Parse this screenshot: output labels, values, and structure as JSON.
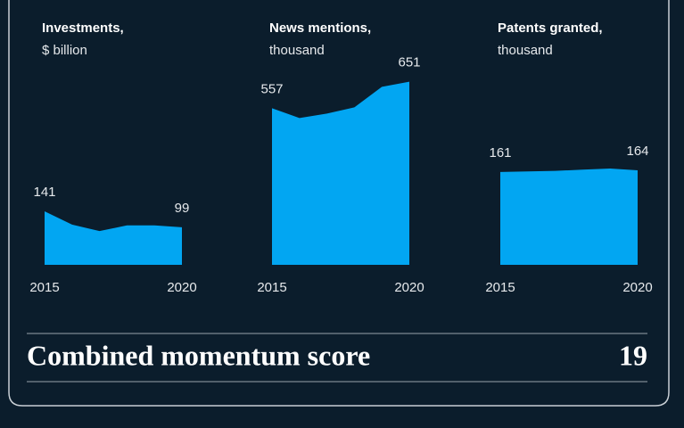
{
  "chart_data": [
    {
      "type": "area",
      "title": "Investments,",
      "subtitle": "$ billion",
      "color": "#02a6f2",
      "x": [
        2015,
        2016,
        2017,
        2018,
        2019,
        2020
      ],
      "values": [
        141,
        106,
        89,
        104,
        104,
        99
      ],
      "value_labels": [
        "141",
        null,
        null,
        null,
        null,
        "99"
      ],
      "xlim": [
        2015,
        2020
      ],
      "xticks": [
        2015,
        2020
      ],
      "ylim": [
        0,
        482
      ]
    },
    {
      "type": "area",
      "title": "News mentions,",
      "subtitle": "thousand",
      "color": "#02a6f2",
      "x": [
        2015,
        2016,
        2017,
        2018,
        2019,
        2020
      ],
      "values": [
        557,
        522,
        538,
        560,
        633,
        651
      ],
      "value_labels": [
        "557",
        null,
        null,
        null,
        null,
        "651"
      ],
      "xlim": [
        2015,
        2020
      ],
      "xticks": [
        2015,
        2020
      ],
      "ylim": [
        0,
        650
      ]
    },
    {
      "type": "area",
      "title": "Patents granted,",
      "subtitle": "thousand",
      "color": "#02a6f2",
      "x": [
        2015,
        2016,
        2017,
        2018,
        2019,
        2020
      ],
      "values": [
        161,
        162,
        163,
        165,
        167,
        164
      ],
      "value_labels": [
        "161",
        null,
        null,
        null,
        null,
        "164"
      ],
      "xlim": [
        2015,
        2020
      ],
      "xticks": [
        2015,
        2020
      ],
      "ylim": [
        0,
        317
      ]
    }
  ],
  "footer": {
    "label": "Combined momentum score",
    "score": 19
  }
}
